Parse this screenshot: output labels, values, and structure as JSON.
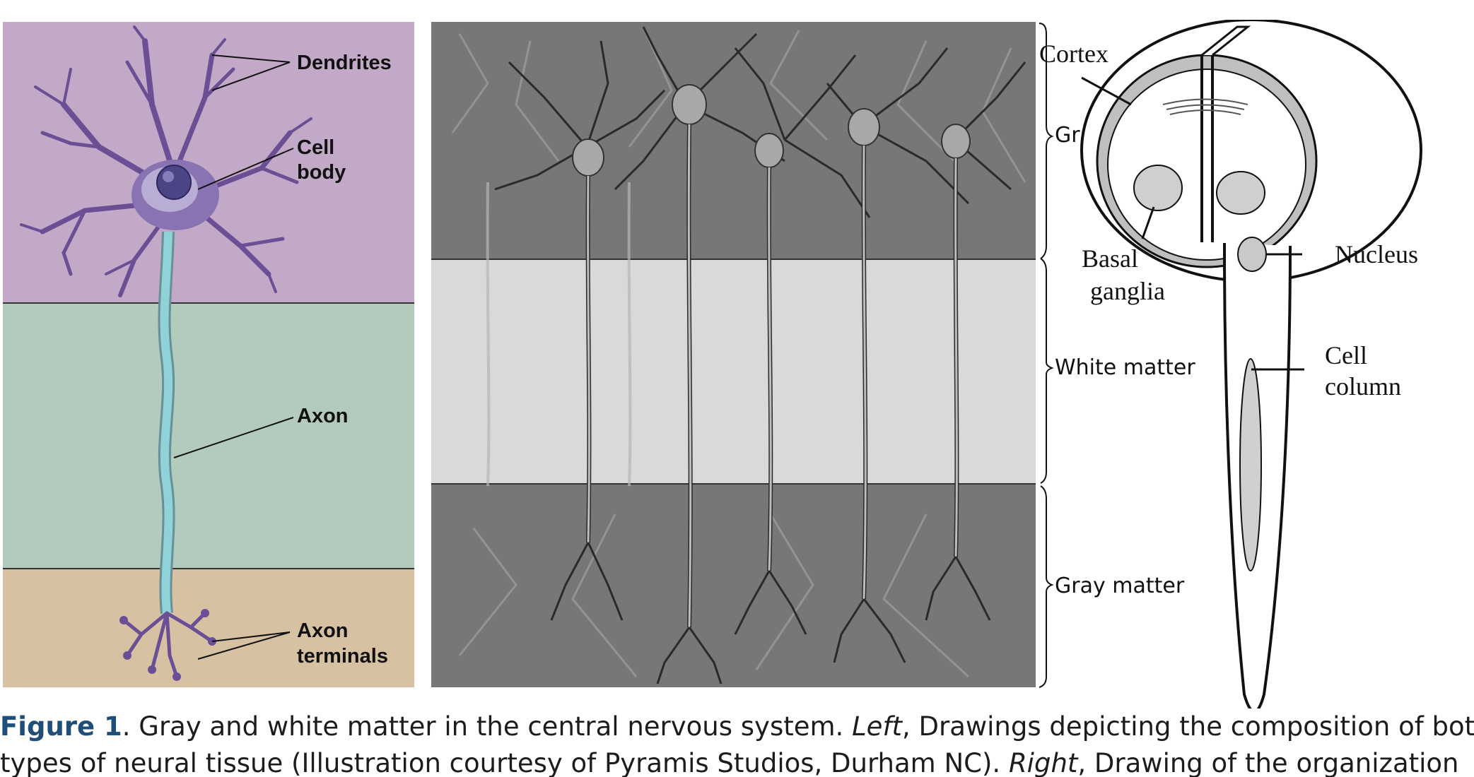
{
  "left_panel": {
    "colors": {
      "top": "#c3a9c8",
      "middle": "#b2cbbd",
      "bottom": "#d6c1a3",
      "neuron": "#6a4f95",
      "axon": "#8fd3d8"
    },
    "labels": {
      "dendrites": "Dendrites",
      "cell_body_1": "Cell",
      "cell_body_2": "body",
      "axon": "Axon",
      "axon_terminals_1": "Axon",
      "axon_terminals_2": "terminals"
    }
  },
  "middle_panel": {
    "colors": {
      "gray_layer": "#777777",
      "white_layer": "#d9d9d9"
    }
  },
  "right_panel": {
    "brackets": {
      "cortex": "Cortex",
      "gray_matter_top": "Gray matter",
      "white_matter": "White matter",
      "gray_matter_bottom": "Gray matter"
    },
    "labels": {
      "basal_1": "Basal",
      "basal_2": "ganglia",
      "nucleus": "Nucleus",
      "cell_column_1": "Cell",
      "cell_column_2": "column"
    }
  },
  "caption": {
    "figure_label": "Figure 1",
    "line1_a": ". Gray and white matter in the central nervous system. ",
    "line1_left": "Left",
    "line1_b": ", Drawings depicting the composition of both",
    "line2_a": "types of neural tissue (Illustration courtesy of Pyramis Studios, Durham NC). ",
    "line2_right": "Right",
    "line2_b": ", Drawing of the organization"
  }
}
